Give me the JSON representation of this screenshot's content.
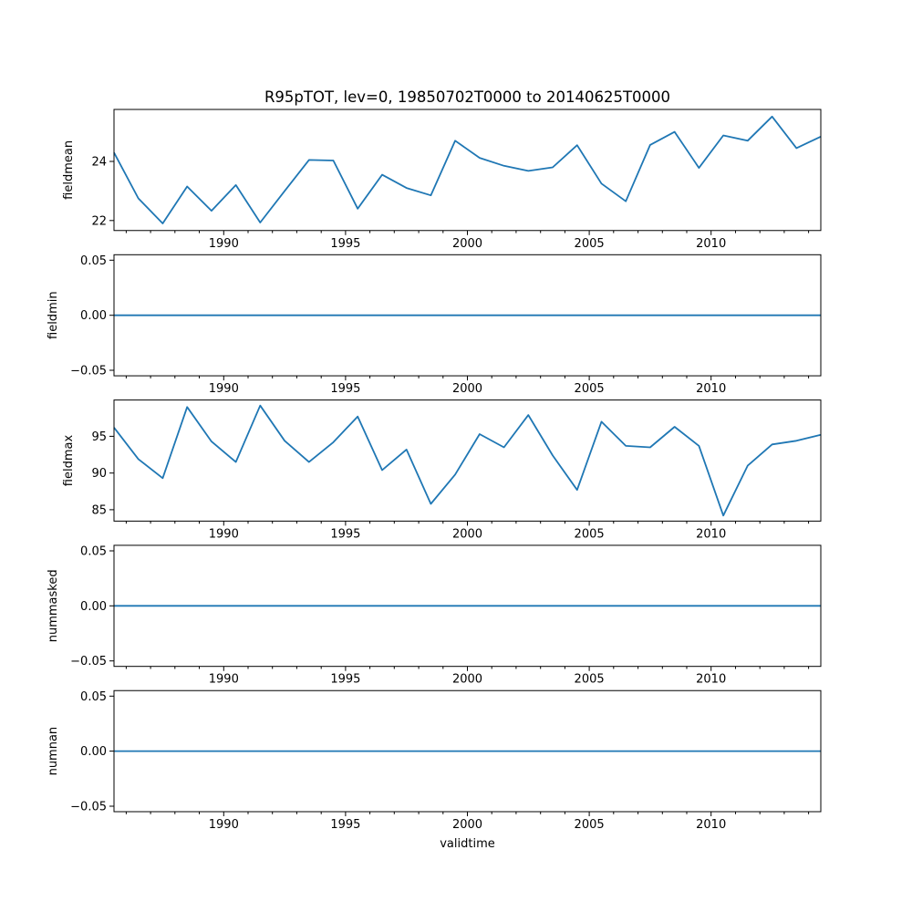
{
  "title": "R95pTOT, lev=0, 19850702T0000 to 20140625T0000",
  "chart_data": {
    "type": "line",
    "title": "R95pTOT, lev=0, 19850702T0000 to 20140625T0000",
    "xlabel": "validtime",
    "line_color": "#1f77b4",
    "axis_color": "#000000",
    "grid": false,
    "legend": "none",
    "xlim": [
      1985.5,
      2014.5
    ],
    "x_major_ticks": [
      1990,
      1995,
      2000,
      2005,
      2010
    ],
    "x_major_tick_labels": [
      "1990",
      "1995",
      "2000",
      "2005",
      "2010"
    ],
    "x_minor_tick_step_years": 1,
    "x": [
      1985.5,
      1986.5,
      1987.5,
      1988.5,
      1989.5,
      1990.5,
      1991.5,
      1992.5,
      1993.5,
      1994.5,
      1995.5,
      1996.5,
      1997.5,
      1998.5,
      1999.5,
      2000.5,
      2001.5,
      2002.5,
      2003.5,
      2004.5,
      2005.5,
      2006.5,
      2007.5,
      2008.5,
      2009.5,
      2010.5,
      2011.5,
      2012.5,
      2013.5,
      2014.5
    ],
    "subplots": [
      {
        "name": "fieldmean",
        "ylabel": "fieldmean",
        "ylim": [
          21.66,
          25.76
        ],
        "yticks": [
          22,
          24
        ],
        "ytick_labels": [
          "22",
          "24"
        ],
        "values": [
          24.3,
          22.75,
          21.9,
          23.15,
          22.33,
          23.2,
          21.93,
          23.0,
          24.05,
          24.03,
          22.4,
          23.55,
          23.1,
          22.85,
          24.7,
          24.12,
          23.85,
          23.68,
          23.8,
          24.55,
          23.25,
          22.65,
          24.56,
          25.0,
          23.78,
          24.88,
          24.7,
          25.52,
          24.45,
          24.84
        ]
      },
      {
        "name": "fieldmin",
        "ylabel": "fieldmin",
        "ylim": [
          -0.055,
          0.055
        ],
        "yticks": [
          0.05,
          0.0,
          -0.05
        ],
        "ytick_labels": [
          "0.05",
          "0.00",
          "−0.05"
        ],
        "values": [
          0,
          0,
          0,
          0,
          0,
          0,
          0,
          0,
          0,
          0,
          0,
          0,
          0,
          0,
          0,
          0,
          0,
          0,
          0,
          0,
          0,
          0,
          0,
          0,
          0,
          0,
          0,
          0,
          0,
          0
        ]
      },
      {
        "name": "fieldmax",
        "ylabel": "fieldmax",
        "ylim": [
          83.45,
          99.95
        ],
        "yticks": [
          85,
          90,
          95
        ],
        "ytick_labels": [
          "85",
          "90",
          "95"
        ],
        "values": [
          96.2,
          91.9,
          89.3,
          99.0,
          94.3,
          91.5,
          99.2,
          94.4,
          91.5,
          94.2,
          97.7,
          90.4,
          93.2,
          85.8,
          89.8,
          95.3,
          93.5,
          97.9,
          92.4,
          87.7,
          97.0,
          93.7,
          93.5,
          96.3,
          93.7,
          84.2,
          91.0,
          93.9,
          94.4,
          95.2
        ]
      },
      {
        "name": "nummasked",
        "ylabel": "nummasked",
        "ylim": [
          -0.055,
          0.055
        ],
        "yticks": [
          0.05,
          0.0,
          -0.05
        ],
        "ytick_labels": [
          "0.05",
          "0.00",
          "−0.05"
        ],
        "values": [
          0,
          0,
          0,
          0,
          0,
          0,
          0,
          0,
          0,
          0,
          0,
          0,
          0,
          0,
          0,
          0,
          0,
          0,
          0,
          0,
          0,
          0,
          0,
          0,
          0,
          0,
          0,
          0,
          0,
          0
        ]
      },
      {
        "name": "numnan",
        "ylabel": "numnan",
        "ylim": [
          -0.055,
          0.055
        ],
        "yticks": [
          0.05,
          0.0,
          -0.05
        ],
        "ytick_labels": [
          "0.05",
          "0.00",
          "−0.05"
        ],
        "values": [
          0,
          0,
          0,
          0,
          0,
          0,
          0,
          0,
          0,
          0,
          0,
          0,
          0,
          0,
          0,
          0,
          0,
          0,
          0,
          0,
          0,
          0,
          0,
          0,
          0,
          0,
          0,
          0,
          0,
          0
        ]
      }
    ]
  }
}
